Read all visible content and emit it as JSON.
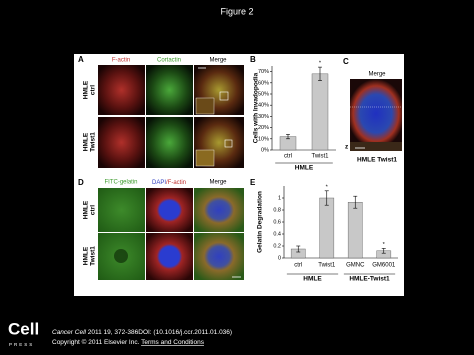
{
  "header": {
    "title": "Figure 2"
  },
  "panel_a": {
    "letter": "A",
    "columns": [
      "F-actin",
      "Cortactin",
      "Merge"
    ],
    "rows": [
      [
        "HMLE",
        "ctrl"
      ],
      [
        "HMLE",
        "Twist1"
      ]
    ]
  },
  "panel_c": {
    "letter": "C",
    "title": "Merge",
    "axis": "z",
    "caption": "HMLE Twist1"
  },
  "panel_d": {
    "letter": "D",
    "columns": [
      "FITC-gelatin",
      "DAPI",
      "/F-actin",
      "Merge"
    ],
    "rows": [
      [
        "HMLE",
        "ctrl"
      ],
      [
        "HMLE",
        "Twist1"
      ]
    ]
  },
  "chart_data": [
    {
      "type": "bar",
      "panel_label": "B",
      "ylabel": "Cells with Invadopodia",
      "categories": [
        "ctrl",
        "Twist1"
      ],
      "values": [
        12,
        68
      ],
      "errors": [
        2,
        6
      ],
      "color": "#c8c8c8",
      "ylim": [
        0,
        75
      ],
      "yticks": [
        {
          "value": 0,
          "label": "0%"
        },
        {
          "value": 10,
          "label": "10%"
        },
        {
          "value": 20,
          "label": "20%"
        },
        {
          "value": 30,
          "label": "30%"
        },
        {
          "value": 40,
          "label": "40%"
        },
        {
          "value": 50,
          "label": "50%"
        },
        {
          "value": 60,
          "label": "60%"
        },
        {
          "value": 70,
          "label": "70%"
        }
      ],
      "annotations": [
        {
          "text": "*",
          "category": "Twist1"
        }
      ],
      "groups": [
        {
          "label": "HMLE",
          "categories": [
            "ctrl",
            "Twist1"
          ]
        }
      ]
    },
    {
      "type": "bar",
      "panel_label": "E",
      "ylabel": "Gelatin Degradation",
      "categories": [
        "ctrl",
        "Twist1",
        "GMNC",
        "GM6001"
      ],
      "values": [
        0.15,
        1.0,
        0.93,
        0.12
      ],
      "errors": [
        0.05,
        0.12,
        0.1,
        0.04
      ],
      "color": "#c8c8c8",
      "ylim": [
        0,
        1.2
      ],
      "yticks": [
        0,
        0.2,
        0.4,
        0.6,
        0.8,
        1
      ],
      "annotations": [
        {
          "text": "*",
          "category": "Twist1"
        },
        {
          "text": "*",
          "category": "GM6001"
        }
      ],
      "groups": [
        {
          "label": "HMLE",
          "categories": [
            "ctrl",
            "Twist1"
          ]
        },
        {
          "label": "HMLE-Twist1",
          "categories": [
            "GMNC",
            "GM6001"
          ]
        }
      ]
    }
  ],
  "footer": {
    "logo": [
      "Cell",
      "PRESS"
    ],
    "journal": "Cancer Cell",
    "citation": " 2011 19, 372-386DOI: (10.1016/j.ccr.2011.01.036)",
    "copyright": "Copyright © 2011 Elsevier Inc. ",
    "link": "Terms and Conditions"
  }
}
